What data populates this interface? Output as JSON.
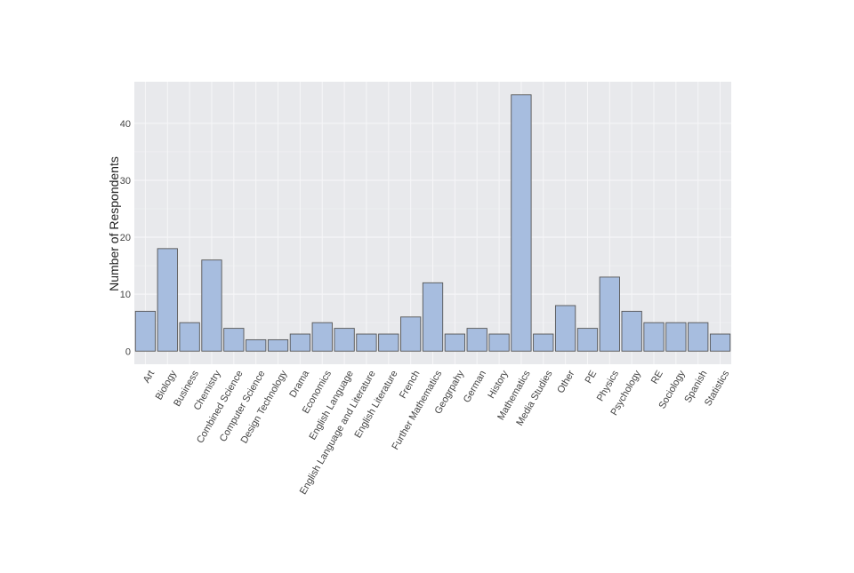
{
  "chart_data": {
    "type": "bar",
    "title": "",
    "xlabel": "",
    "ylabel": "Number of Respondents",
    "categories": [
      "Art",
      "Biology",
      "Business",
      "Chemistry",
      "Combined Science",
      "Computer Science",
      "Design Technology",
      "Drama",
      "Economics",
      "English Language",
      "English Language and Literature",
      "English Literature",
      "French",
      "Further Mathematics",
      "Geogrpahy",
      "German",
      "History",
      "Mathematics",
      "Media Studies",
      "Other",
      "PE",
      "Physics",
      "Psychology",
      "RE",
      "Sociology",
      "Spanish",
      "Statistics"
    ],
    "values": [
      7,
      18,
      5,
      16,
      4,
      2,
      2,
      3,
      5,
      4,
      3,
      3,
      6,
      12,
      3,
      4,
      3,
      45,
      3,
      8,
      4,
      13,
      7,
      5,
      5,
      5,
      3
    ],
    "ylim": [
      -2.3,
      47.3
    ],
    "yticks": [
      0,
      10,
      20,
      30,
      40
    ],
    "grid": true,
    "legend": "none",
    "colors": {
      "bar_fill": "#a7bddf",
      "bar_stroke": "#555555",
      "plot_bg": "#e8e9ec",
      "grid_major": "#f6f6f8",
      "grid_minor": "#eff0f2"
    }
  }
}
